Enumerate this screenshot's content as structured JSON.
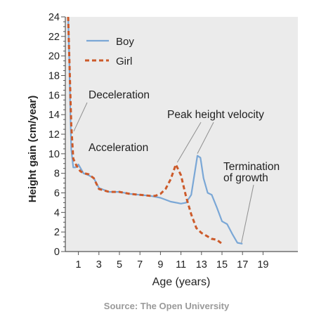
{
  "chart_data": {
    "type": "line",
    "xlabel": "Age (years)",
    "ylabel": "Height gain (cm/year)",
    "xlim": [
      -1,
      20.5
    ],
    "ylim": [
      0,
      24
    ],
    "x_ticks": [
      1,
      3,
      5,
      7,
      9,
      11,
      13,
      15,
      17,
      19
    ],
    "y_ticks": [
      0,
      2,
      4,
      6,
      8,
      10,
      12,
      14,
      16,
      18,
      20,
      22,
      24
    ],
    "y_minor_step": 0.5,
    "grid": false,
    "legend_position": "top-left",
    "plot_background": "#ebebeb",
    "series": [
      {
        "name": "Boy",
        "color": "#7aa7d6",
        "dash": "solid",
        "x": [
          0.0,
          0.1,
          0.2,
          0.3,
          0.5,
          0.7,
          1.0,
          1.5,
          2.0,
          2.5,
          3.0,
          4.0,
          5.0,
          6.0,
          7.0,
          8.0,
          9.0,
          10.0,
          11.0,
          11.5,
          12.0,
          12.3,
          12.6,
          12.9,
          13.2,
          13.6,
          14.0,
          14.5,
          15.0,
          15.5,
          16.0,
          16.5,
          17.0
        ],
        "y": [
          24,
          20,
          15,
          10.5,
          8.6,
          8.6,
          8.9,
          8.0,
          7.8,
          7.5,
          6.5,
          6.1,
          6.1,
          5.9,
          5.8,
          5.7,
          5.5,
          5.1,
          4.9,
          5.0,
          5.8,
          7.8,
          9.8,
          9.6,
          7.5,
          6.0,
          5.8,
          4.5,
          3.1,
          2.8,
          1.8,
          0.9,
          0.8
        ]
      },
      {
        "name": "Girl",
        "color": "#cc5a2a",
        "dash": "dashed",
        "x": [
          0.0,
          0.15,
          0.3,
          0.5,
          0.8,
          1.2,
          1.6,
          2.0,
          2.5,
          3.0,
          4.0,
          5.0,
          6.0,
          7.0,
          8.0,
          8.5,
          9.0,
          9.5,
          10.0,
          10.5,
          11.0,
          11.5,
          12.0,
          12.5,
          13.0,
          13.5,
          14.0,
          14.5,
          15.0
        ],
        "y": [
          24,
          18.5,
          13,
          9.5,
          8.8,
          8.2,
          8.0,
          7.9,
          7.5,
          6.4,
          6.1,
          6.1,
          5.9,
          5.8,
          5.7,
          5.7,
          5.9,
          6.4,
          7.4,
          8.9,
          7.8,
          5.6,
          3.8,
          2.4,
          1.9,
          1.6,
          1.3,
          1.2,
          0.8
        ]
      }
    ],
    "annotations": [
      {
        "text": "Deceleration"
      },
      {
        "text": "Peak height velocity"
      },
      {
        "text": "Acceleration"
      },
      {
        "text": "Termination of growth",
        "lines": [
          "Termination",
          "of growth"
        ]
      }
    ]
  },
  "source": "Source: The Open University"
}
